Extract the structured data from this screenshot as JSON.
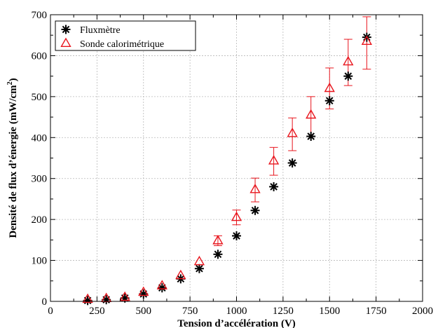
{
  "chart_data": {
    "type": "scatter",
    "title": "",
    "xlabel": "Tension d’accélération (V)",
    "ylabel_main": "Densité de flux d’énergie (mW/cm",
    "ylabel_sup": "2",
    "ylabel_tail": ")",
    "xlim": [
      0,
      2000
    ],
    "ylim": [
      0,
      700
    ],
    "xticks": [
      0,
      250,
      500,
      750,
      1000,
      1250,
      1500,
      1750,
      2000
    ],
    "yticks": [
      0,
      100,
      200,
      300,
      400,
      500,
      600,
      700
    ],
    "grid": true,
    "legend_position": "top-left",
    "series": [
      {
        "name": "Fluxmètre",
        "marker": "asterisk",
        "color": "#000000",
        "x": [
          200,
          300,
          400,
          500,
          600,
          700,
          800,
          900,
          1000,
          1100,
          1200,
          1300,
          1400,
          1500,
          1600,
          1700
        ],
        "y": [
          2,
          4,
          8,
          18,
          33,
          55,
          80,
          115,
          160,
          222,
          280,
          338,
          403,
          490,
          550,
          645
        ]
      },
      {
        "name": "Sonde calorimétrique",
        "marker": "triangle",
        "color": "#e8141c",
        "x": [
          200,
          300,
          400,
          500,
          600,
          700,
          800,
          900,
          1000,
          1100,
          1200,
          1300,
          1400,
          1500,
          1600,
          1700
        ],
        "y": [
          5,
          7,
          10,
          22,
          38,
          63,
          97,
          148,
          205,
          273,
          343,
          410,
          455,
          520,
          585,
          635
        ],
        "err_low": [
          0,
          0,
          0,
          0,
          0,
          0,
          0,
          12,
          18,
          30,
          35,
          42,
          52,
          50,
          58,
          68
        ],
        "err_high": [
          0,
          0,
          0,
          0,
          0,
          0,
          0,
          12,
          18,
          28,
          33,
          38,
          45,
          50,
          55,
          60
        ]
      }
    ]
  }
}
